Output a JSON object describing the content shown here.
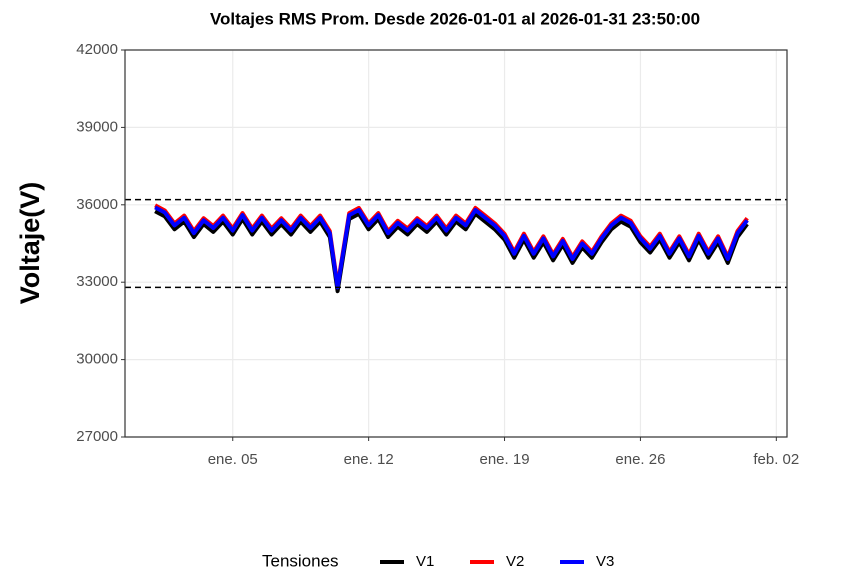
{
  "chart_data": {
    "type": "line",
    "title": "Voltajes RMS Prom. Desde  2026-01-01  al  2026-01-31 23:50:00",
    "y_label": "Voltaje(V)",
    "legend_title": "Tensiones",
    "legend_position": "bottom",
    "grid": true,
    "hlines": [
      36200,
      32800
    ],
    "xlim": [
      -0.55,
      33.55
    ],
    "xticks": [
      {
        "value": 5,
        "label": "ene. 05"
      },
      {
        "value": 12,
        "label": "ene. 12"
      },
      {
        "value": 19,
        "label": "ene. 19"
      },
      {
        "value": 26,
        "label": "ene. 26"
      },
      {
        "value": 33,
        "label": "feb. 02"
      }
    ],
    "ylim": [
      27000,
      42000
    ],
    "yticks": [
      27000,
      30000,
      33000,
      36000,
      39000,
      42000
    ],
    "x": [
      1,
      1.5,
      2,
      2.5,
      3,
      3.5,
      4,
      4.5,
      5,
      5.5,
      6,
      6.5,
      7,
      7.5,
      8,
      8.5,
      9,
      9.5,
      10,
      10.4,
      11,
      11.5,
      12,
      12.5,
      13,
      13.5,
      14,
      14.5,
      15,
      15.5,
      16,
      16.5,
      17,
      17.5,
      18,
      18.5,
      19,
      19.5,
      20,
      20.5,
      21,
      21.5,
      22,
      22.5,
      23,
      23.5,
      24,
      24.5,
      25,
      25.5,
      26,
      26.5,
      27,
      27.5,
      28,
      28.5,
      29,
      29.5,
      30,
      30.5,
      31,
      31.5
    ],
    "series": [
      {
        "name": "V1",
        "color": "#000000",
        "values": [
          35750,
          35550,
          35050,
          35350,
          34750,
          35250,
          34950,
          35350,
          34850,
          35450,
          34850,
          35350,
          34850,
          35250,
          34850,
          35350,
          34950,
          35350,
          34750,
          32650,
          35450,
          35650,
          35050,
          35450,
          34750,
          35150,
          34850,
          35250,
          34950,
          35350,
          34850,
          35350,
          35050,
          35650,
          35350,
          35050,
          34650,
          33950,
          34650,
          33950,
          34550,
          33850,
          34450,
          33750,
          34350,
          33950,
          34550,
          35050,
          35350,
          35150,
          34550,
          34150,
          34650,
          33950,
          34550,
          33850,
          34650,
          33950,
          34550,
          33750,
          34750,
          35250
        ]
      },
      {
        "name": "V2",
        "color": "#ff0000",
        "values": [
          35980,
          35780,
          35280,
          35580,
          34980,
          35480,
          35180,
          35580,
          35080,
          35680,
          35080,
          35580,
          35080,
          35480,
          35080,
          35580,
          35180,
          35580,
          34980,
          32880,
          35680,
          35880,
          35280,
          35680,
          34980,
          35380,
          35080,
          35480,
          35180,
          35580,
          35080,
          35580,
          35280,
          35880,
          35580,
          35280,
          34880,
          34180,
          34880,
          34180,
          34780,
          34080,
          34680,
          33980,
          34580,
          34180,
          34780,
          35280,
          35580,
          35380,
          34780,
          34380,
          34880,
          34180,
          34780,
          34080,
          34880,
          34180,
          34780,
          33980,
          34980,
          35480
        ]
      },
      {
        "name": "V3",
        "color": "#0000ff",
        "values": [
          35900,
          35700,
          35200,
          35500,
          34900,
          35400,
          35100,
          35500,
          35000,
          35600,
          35000,
          35500,
          35000,
          35400,
          35000,
          35500,
          35100,
          35500,
          34900,
          32800,
          35600,
          35800,
          35200,
          35600,
          34900,
          35300,
          35000,
          35400,
          35100,
          35500,
          35000,
          35500,
          35200,
          35800,
          35500,
          35200,
          34800,
          34100,
          34800,
          34100,
          34700,
          34000,
          34600,
          33900,
          34500,
          34100,
          34700,
          35200,
          35500,
          35300,
          34700,
          34300,
          34800,
          34100,
          34700,
          34000,
          34800,
          34100,
          34700,
          33900,
          34900,
          35400
        ]
      }
    ]
  }
}
